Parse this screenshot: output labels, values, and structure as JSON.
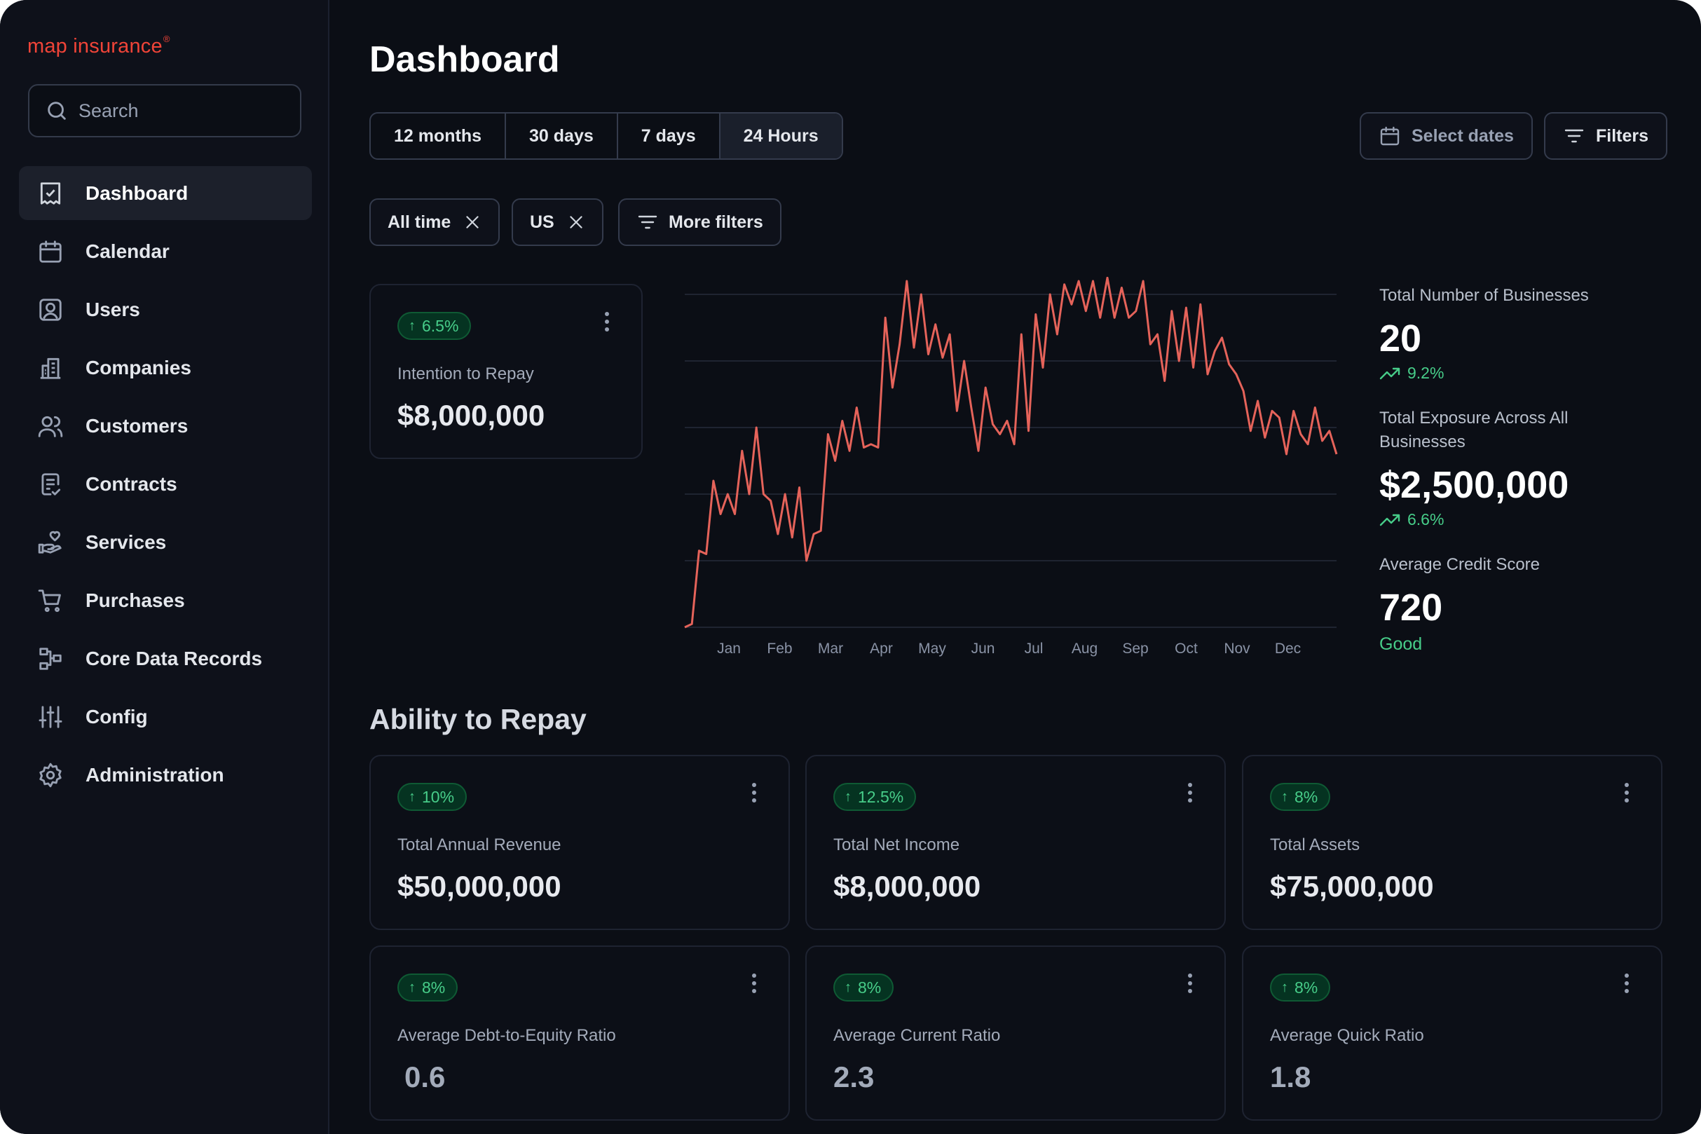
{
  "brand": {
    "name": "map insurance",
    "mark": "®"
  },
  "search": {
    "placeholder": "Search"
  },
  "sidebar": {
    "items": [
      {
        "label": "Dashboard",
        "icon": "dashboard-icon",
        "active": true
      },
      {
        "label": "Calendar",
        "icon": "calendar-icon"
      },
      {
        "label": "Users",
        "icon": "user-square-icon"
      },
      {
        "label": "Companies",
        "icon": "building-icon"
      },
      {
        "label": "Customers",
        "icon": "users-icon"
      },
      {
        "label": "Contracts",
        "icon": "file-check-icon"
      },
      {
        "label": "Services",
        "icon": "hand-heart-icon"
      },
      {
        "label": "Purchases",
        "icon": "shopping-cart-icon"
      },
      {
        "label": "Core Data Records",
        "icon": "dataflow-icon"
      },
      {
        "label": "Config",
        "icon": "sliders-icon"
      },
      {
        "label": "Administration",
        "icon": "settings-icon"
      }
    ]
  },
  "header": {
    "title": "Dashboard"
  },
  "range_tabs": [
    "12 months",
    "30 days",
    "7 days",
    "24 Hours"
  ],
  "range_selected": "24 Hours",
  "actions": {
    "select_dates": "Select dates",
    "filters": "Filters"
  },
  "active_filters": [
    "All time",
    "US"
  ],
  "more_filters": "More filters",
  "intention_card": {
    "badge": "6.5%",
    "label": "Intention to Repay",
    "value": "$8,000,000"
  },
  "kpis": {
    "businesses": {
      "label": "Total Number of Businesses",
      "value": "20",
      "change": "9.2%"
    },
    "exposure": {
      "label": "Total Exposure Across All Businesses",
      "value": "$2,500,000",
      "change": "6.6%"
    },
    "credit": {
      "label": "Average Credit Score",
      "value": "720",
      "rating": "Good"
    }
  },
  "section": {
    "title": "Ability to Repay"
  },
  "metrics": [
    {
      "badge": "10%",
      "label": "Total Annual Revenue",
      "value": "$50,000,000"
    },
    {
      "badge": "12.5%",
      "label": "Total Net Income",
      "value": "$8,000,000"
    },
    {
      "badge": "8%",
      "label": "Total Assets",
      "value": "$75,000,000"
    },
    {
      "badge": "8%",
      "label": "Average Debt-to-Equity Ratio",
      "value": "0.6"
    },
    {
      "badge": "8%",
      "label": "Average Current Ratio",
      "value": "2.3"
    },
    {
      "badge": "8%",
      "label": "Average Quick Ratio",
      "value": "1.8"
    }
  ],
  "colors": {
    "accent": "#f04438",
    "line": "#e5635a",
    "positive": "#47cd89",
    "background": "#0b0e15"
  },
  "chart_data": {
    "type": "line",
    "title": "",
    "xlabel": "",
    "ylabel": "",
    "x_ticks": [
      "Jan",
      "Feb",
      "Mar",
      "Apr",
      "May",
      "Jun",
      "Jul",
      "Aug",
      "Sep",
      "Oct",
      "Nov",
      "Dec"
    ],
    "ylim": [
      0,
      100
    ],
    "grid": true,
    "series": [
      {
        "values": [
          0,
          1,
          23,
          22,
          44,
          34,
          40,
          34,
          53,
          40,
          60,
          40,
          38,
          28,
          40,
          27,
          42,
          20,
          28,
          29,
          58,
          50,
          62,
          53,
          66,
          54,
          55,
          54,
          93,
          72,
          85,
          104,
          84,
          100,
          82,
          91,
          81,
          88,
          65,
          80,
          66,
          53,
          72,
          61,
          58,
          62,
          55,
          88,
          59,
          94,
          78,
          100,
          88,
          103,
          97,
          104,
          95,
          104,
          93,
          105,
          93,
          102,
          93,
          95,
          104,
          85,
          88,
          74,
          95,
          80,
          96,
          78,
          97,
          76,
          83,
          87,
          79,
          76,
          71,
          59,
          68,
          57,
          65,
          63,
          52,
          65,
          58,
          55,
          66,
          56,
          59,
          52
        ]
      }
    ]
  }
}
